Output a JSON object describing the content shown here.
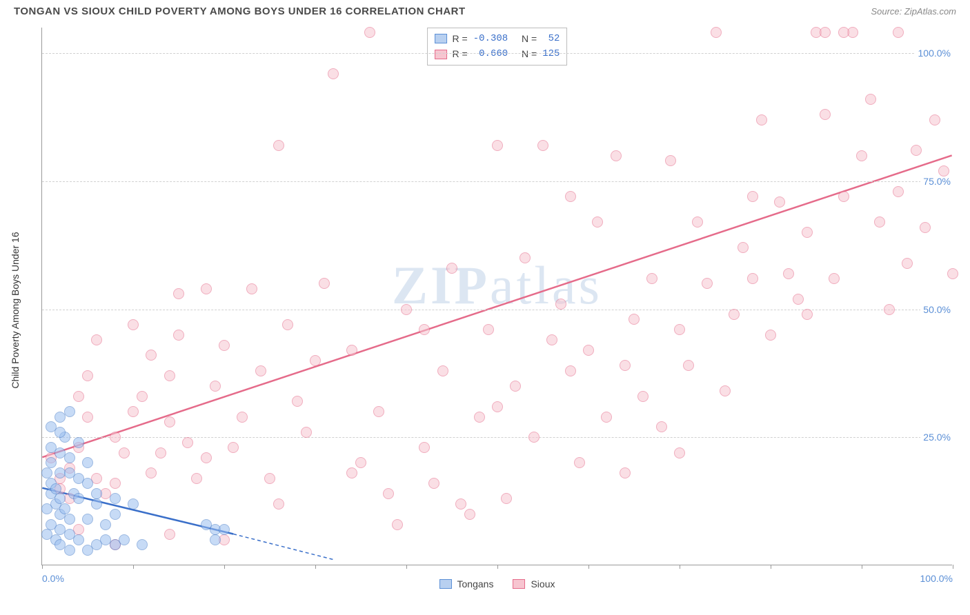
{
  "header": {
    "title": "TONGAN VS SIOUX CHILD POVERTY AMONG BOYS UNDER 16 CORRELATION CHART",
    "source": "Source: ZipAtlas.com"
  },
  "watermark": {
    "zip": "ZIP",
    "atlas": "atlas"
  },
  "chart": {
    "type": "scatter",
    "y_axis_label": "Child Poverty Among Boys Under 16",
    "xlim": [
      0,
      100
    ],
    "ylim": [
      0,
      105
    ],
    "x_ticks": [
      0,
      50,
      100
    ],
    "x_tick_labels": [
      "0.0%",
      "",
      "100.0%"
    ],
    "y_ticks": [
      25,
      50,
      75,
      100
    ],
    "y_tick_labels": [
      "25.0%",
      "50.0%",
      "75.0%",
      "100.0%"
    ],
    "x_tick_marks": [
      0,
      10,
      20,
      30,
      40,
      50,
      60,
      70,
      80,
      90,
      100
    ],
    "grid_color": "#d0d0d0",
    "background_color": "#ffffff",
    "marker_radius": 8,
    "marker_opacity": 0.55,
    "series": {
      "tongans": {
        "label": "Tongans",
        "fill": "#9bbef0",
        "stroke": "#4a7fc9",
        "r_value": "-0.308",
        "n_value": "52",
        "trend": {
          "x1": 0,
          "y1": 15,
          "x2": 21,
          "y2": 6,
          "dash_x2": 32,
          "dash_y2": 1,
          "color": "#3a6fc9",
          "width": 2.5
        },
        "points": [
          [
            1,
            14
          ],
          [
            1,
            16
          ],
          [
            1.5,
            12
          ],
          [
            2,
            10
          ],
          [
            2,
            13
          ],
          [
            1,
            20
          ],
          [
            2,
            22
          ],
          [
            2.5,
            25
          ],
          [
            3,
            30
          ],
          [
            0.5,
            18
          ],
          [
            1,
            8
          ],
          [
            2,
            7
          ],
          [
            3,
            9
          ],
          [
            1.5,
            5
          ],
          [
            0.5,
            11
          ],
          [
            3.5,
            14
          ],
          [
            4,
            17
          ],
          [
            2,
            18
          ],
          [
            1,
            23
          ],
          [
            3,
            21
          ],
          [
            0.5,
            6
          ],
          [
            1.5,
            15
          ],
          [
            2.5,
            11
          ],
          [
            4,
            13
          ],
          [
            5,
            9
          ],
          [
            6,
            12
          ],
          [
            3,
            18
          ],
          [
            2,
            26
          ],
          [
            4,
            24
          ],
          [
            1,
            27
          ],
          [
            7,
            8
          ],
          [
            6,
            14
          ],
          [
            8,
            13
          ],
          [
            10,
            12
          ],
          [
            5,
            20
          ],
          [
            3,
            6
          ],
          [
            2,
            4
          ],
          [
            4,
            5
          ],
          [
            5,
            3
          ],
          [
            7,
            5
          ],
          [
            3,
            3
          ],
          [
            6,
            4
          ],
          [
            8,
            4
          ],
          [
            9,
            5
          ],
          [
            11,
            4
          ],
          [
            19,
            7
          ],
          [
            20,
            7
          ],
          [
            19,
            5
          ],
          [
            18,
            8
          ],
          [
            8,
            10
          ],
          [
            5,
            16
          ],
          [
            2,
            29
          ]
        ]
      },
      "sioux": {
        "label": "Sioux",
        "fill": "#f7c5d0",
        "stroke": "#e56b8a",
        "r_value": "0.660",
        "n_value": "125",
        "trend": {
          "x1": 0,
          "y1": 21,
          "x2": 100,
          "y2": 80,
          "color": "#e56b8a",
          "width": 2.5
        },
        "points": [
          [
            2,
            17
          ],
          [
            3,
            19
          ],
          [
            1,
            21
          ],
          [
            4,
            23
          ],
          [
            2,
            15
          ],
          [
            5,
            29
          ],
          [
            3,
            13
          ],
          [
            6,
            17
          ],
          [
            4,
            33
          ],
          [
            7,
            14
          ],
          [
            8,
            25
          ],
          [
            5,
            37
          ],
          [
            9,
            22
          ],
          [
            6,
            44
          ],
          [
            10,
            30
          ],
          [
            8,
            16
          ],
          [
            12,
            41
          ],
          [
            11,
            33
          ],
          [
            14,
            28
          ],
          [
            10,
            47
          ],
          [
            13,
            22
          ],
          [
            15,
            53
          ],
          [
            12,
            18
          ],
          [
            16,
            24
          ],
          [
            14,
            37
          ],
          [
            18,
            21
          ],
          [
            15,
            45
          ],
          [
            19,
            35
          ],
          [
            17,
            17
          ],
          [
            20,
            43
          ],
          [
            18,
            54
          ],
          [
            22,
            29
          ],
          [
            21,
            23
          ],
          [
            24,
            38
          ],
          [
            23,
            54
          ],
          [
            26,
            82
          ],
          [
            25,
            17
          ],
          [
            28,
            32
          ],
          [
            27,
            47
          ],
          [
            30,
            40
          ],
          [
            29,
            26
          ],
          [
            32,
            96
          ],
          [
            31,
            55
          ],
          [
            34,
            42
          ],
          [
            36,
            104
          ],
          [
            35,
            20
          ],
          [
            38,
            14
          ],
          [
            37,
            30
          ],
          [
            40,
            50
          ],
          [
            39,
            8
          ],
          [
            42,
            23
          ],
          [
            44,
            38
          ],
          [
            43,
            16
          ],
          [
            46,
            12
          ],
          [
            45,
            58
          ],
          [
            48,
            29
          ],
          [
            47,
            10
          ],
          [
            50,
            82
          ],
          [
            49,
            46
          ],
          [
            52,
            35
          ],
          [
            51,
            13
          ],
          [
            54,
            25
          ],
          [
            53,
            60
          ],
          [
            56,
            44
          ],
          [
            55,
            82
          ],
          [
            58,
            38
          ],
          [
            57,
            51
          ],
          [
            60,
            42
          ],
          [
            59,
            20
          ],
          [
            62,
            29
          ],
          [
            61,
            67
          ],
          [
            64,
            39
          ],
          [
            63,
            80
          ],
          [
            66,
            33
          ],
          [
            65,
            48
          ],
          [
            68,
            27
          ],
          [
            67,
            56
          ],
          [
            70,
            46
          ],
          [
            69,
            79
          ],
          [
            72,
            67
          ],
          [
            71,
            39
          ],
          [
            74,
            104
          ],
          [
            73,
            55
          ],
          [
            76,
            49
          ],
          [
            75,
            34
          ],
          [
            78,
            72
          ],
          [
            77,
            62
          ],
          [
            80,
            45
          ],
          [
            79,
            87
          ],
          [
            82,
            57
          ],
          [
            81,
            71
          ],
          [
            84,
            65
          ],
          [
            83,
            52
          ],
          [
            86,
            88
          ],
          [
            85,
            104
          ],
          [
            88,
            72
          ],
          [
            87,
            56
          ],
          [
            90,
            80
          ],
          [
            89,
            104
          ],
          [
            92,
            67
          ],
          [
            91,
            91
          ],
          [
            94,
            73
          ],
          [
            93,
            50
          ],
          [
            96,
            81
          ],
          [
            95,
            59
          ],
          [
            98,
            87
          ],
          [
            97,
            66
          ],
          [
            100,
            57
          ],
          [
            99,
            77
          ],
          [
            88,
            104
          ],
          [
            86,
            104
          ],
          [
            94,
            104
          ],
          [
            84,
            49
          ],
          [
            78,
            56
          ],
          [
            70,
            22
          ],
          [
            64,
            18
          ],
          [
            58,
            72
          ],
          [
            50,
            31
          ],
          [
            42,
            46
          ],
          [
            34,
            18
          ],
          [
            26,
            12
          ],
          [
            20,
            5
          ],
          [
            14,
            6
          ],
          [
            8,
            4
          ],
          [
            4,
            7
          ]
        ]
      }
    }
  },
  "stats_legend": {
    "r_label": "R =",
    "n_label": "N ="
  },
  "bottom_legend": {
    "items": [
      "Tongans",
      "Sioux"
    ]
  }
}
